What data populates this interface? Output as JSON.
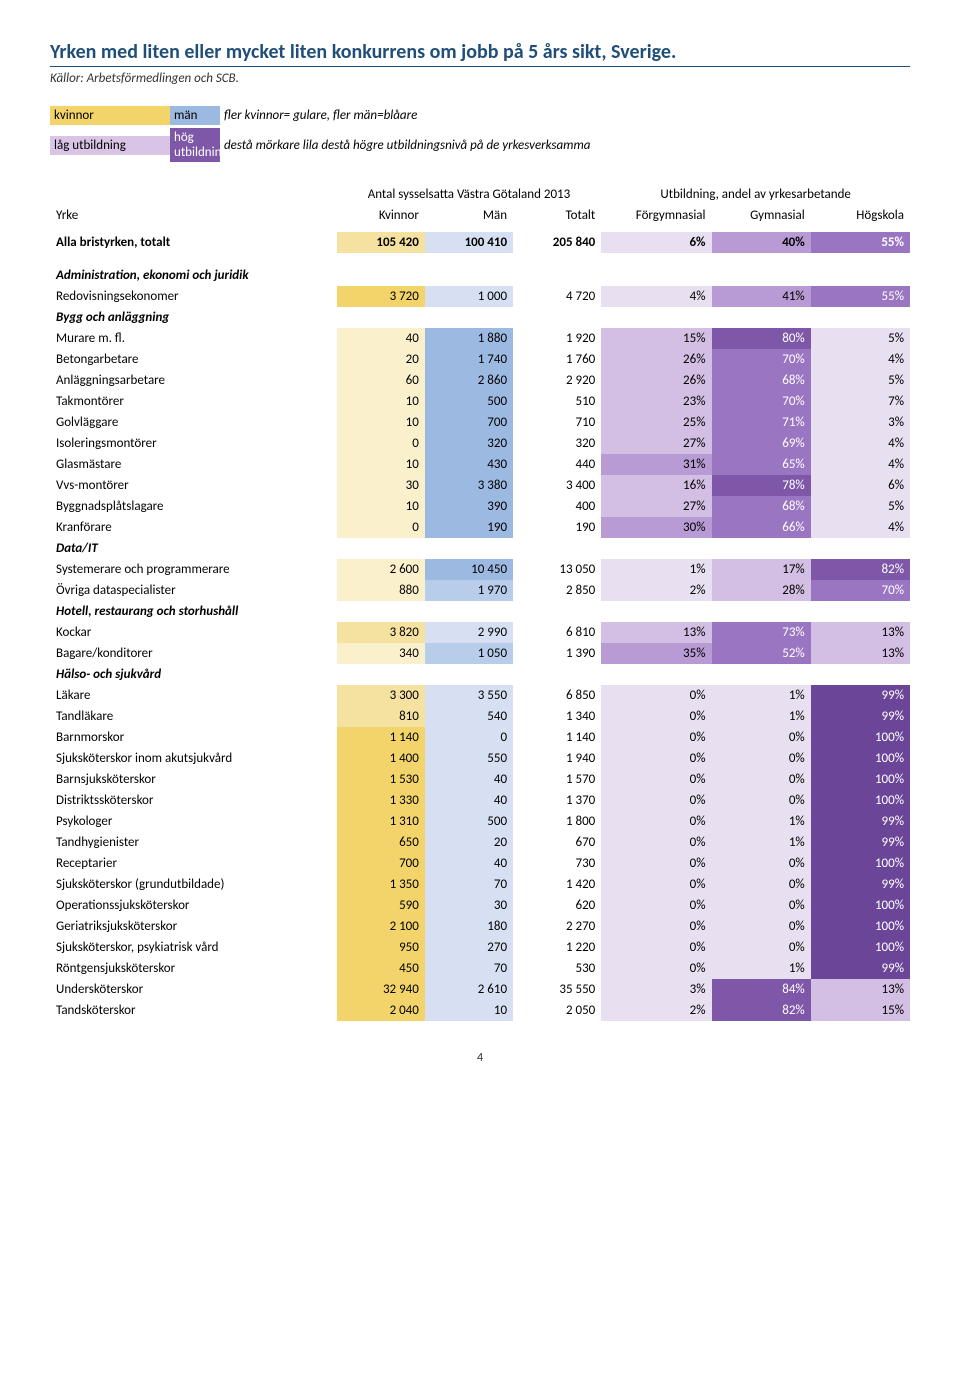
{
  "title": "Yrken med liten eller mycket liten konkurrens om jobb på 5 års sikt, Sverige.",
  "subtitle": "Källor: Arbetsförmedlingen och SCB.",
  "legend": {
    "kvinnor_label": "kvinnor",
    "man_label": "män",
    "gender_desc": "fler kvinnor= gulare, fler män=blåare",
    "low_label": "låg utbildning",
    "high_label": "hög utbildning",
    "edu_desc": "destå mörkare lila destå högre utbildningsnivå på de yrkesverksamma",
    "kvinnor_color": "#f2d46a",
    "man_color": "#9cb9e2",
    "low_color": "#d9c4e6",
    "high_color": "#7e57a8"
  },
  "headers": {
    "group1": "Antal sysselsatta Västra Götaland 2013",
    "group2": "Utbildning, andel av yrkesarbetande",
    "yrke": "Yrke",
    "kvinnor": "Kvinnor",
    "man": "Män",
    "totalt": "Totalt",
    "forgym": "Förgymnasial",
    "gym": "Gymnasial",
    "hog": "Högskola"
  },
  "colors": {
    "yellow_strong": "#f2d46a",
    "yellow_mid": "#f5e2a0",
    "yellow_light": "#faf0cc",
    "blue_strong": "#9cb9e2",
    "blue_mid": "#b8cdea",
    "blue_light": "#d6e0f2",
    "purple_vlight": "#e8dff0",
    "purple_light": "#d4bfe4",
    "purple_mid": "#b89bd4",
    "purple_strong": "#9a75c2",
    "purple_vstrong": "#7e57a8",
    "purple_darkest": "#6b4698"
  },
  "rows": [
    {
      "type": "bold",
      "label": "Alla bristyrken, totalt",
      "k": "105 420",
      "kc": "yellow_mid",
      "m": "100 410",
      "mc": "blue_light",
      "t": "205 840",
      "f": "6%",
      "fc": "purple_vlight",
      "g": "40%",
      "gc": "purple_mid",
      "h": "55%",
      "hc": "purple_strong"
    },
    {
      "type": "spacer"
    },
    {
      "type": "italic",
      "label": "Administration, ekonomi och juridik"
    },
    {
      "label": "Redovisningsekonomer",
      "k": "3 720",
      "kc": "yellow_strong",
      "m": "1 000",
      "mc": "blue_light",
      "t": "4 720",
      "f": "4%",
      "fc": "purple_vlight",
      "g": "41%",
      "gc": "purple_mid",
      "h": "55%",
      "hc": "purple_strong"
    },
    {
      "type": "italic",
      "label": "Bygg och anläggning"
    },
    {
      "label": "Murare m. fl.",
      "k": "40",
      "kc": "yellow_light",
      "m": "1 880",
      "mc": "blue_strong",
      "t": "1 920",
      "f": "15%",
      "fc": "purple_light",
      "g": "80%",
      "gc": "purple_vstrong",
      "h": "5%",
      "hc": "purple_vlight"
    },
    {
      "label": "Betongarbetare",
      "k": "20",
      "kc": "yellow_light",
      "m": "1 740",
      "mc": "blue_strong",
      "t": "1 760",
      "f": "26%",
      "fc": "purple_light",
      "g": "70%",
      "gc": "purple_strong",
      "h": "4%",
      "hc": "purple_vlight"
    },
    {
      "label": "Anläggningsarbetare",
      "k": "60",
      "kc": "yellow_light",
      "m": "2 860",
      "mc": "blue_strong",
      "t": "2 920",
      "f": "26%",
      "fc": "purple_light",
      "g": "68%",
      "gc": "purple_strong",
      "h": "5%",
      "hc": "purple_vlight"
    },
    {
      "label": "Takmontörer",
      "k": "10",
      "kc": "yellow_light",
      "m": "500",
      "mc": "blue_strong",
      "t": "510",
      "f": "23%",
      "fc": "purple_light",
      "g": "70%",
      "gc": "purple_strong",
      "h": "7%",
      "hc": "purple_vlight"
    },
    {
      "label": "Golvläggare",
      "k": "10",
      "kc": "yellow_light",
      "m": "700",
      "mc": "blue_strong",
      "t": "710",
      "f": "25%",
      "fc": "purple_light",
      "g": "71%",
      "gc": "purple_strong",
      "h": "3%",
      "hc": "purple_vlight"
    },
    {
      "label": "Isoleringsmontörer",
      "k": "0",
      "kc": "yellow_light",
      "m": "320",
      "mc": "blue_strong",
      "t": "320",
      "f": "27%",
      "fc": "purple_light",
      "g": "69%",
      "gc": "purple_strong",
      "h": "4%",
      "hc": "purple_vlight"
    },
    {
      "label": "Glasmästare",
      "k": "10",
      "kc": "yellow_light",
      "m": "430",
      "mc": "blue_strong",
      "t": "440",
      "f": "31%",
      "fc": "purple_mid",
      "g": "65%",
      "gc": "purple_strong",
      "h": "4%",
      "hc": "purple_vlight"
    },
    {
      "label": "Vvs-montörer",
      "k": "30",
      "kc": "yellow_light",
      "m": "3 380",
      "mc": "blue_strong",
      "t": "3 400",
      "f": "16%",
      "fc": "purple_light",
      "g": "78%",
      "gc": "purple_vstrong",
      "h": "6%",
      "hc": "purple_vlight"
    },
    {
      "label": "Byggnadsplåtslagare",
      "k": "10",
      "kc": "yellow_light",
      "m": "390",
      "mc": "blue_strong",
      "t": "400",
      "f": "27%",
      "fc": "purple_light",
      "g": "68%",
      "gc": "purple_strong",
      "h": "5%",
      "hc": "purple_vlight"
    },
    {
      "label": "Kranförare",
      "k": "0",
      "kc": "yellow_light",
      "m": "190",
      "mc": "blue_strong",
      "t": "190",
      "f": "30%",
      "fc": "purple_mid",
      "g": "66%",
      "gc": "purple_strong",
      "h": "4%",
      "hc": "purple_vlight"
    },
    {
      "type": "italic",
      "label": "Data/IT"
    },
    {
      "label": "Systemerare och programmerare",
      "k": "2 600",
      "kc": "yellow_light",
      "m": "10 450",
      "mc": "blue_strong",
      "t": "13 050",
      "f": "1%",
      "fc": "purple_vlight",
      "g": "17%",
      "gc": "purple_light",
      "h": "82%",
      "hc": "purple_vstrong"
    },
    {
      "label": "Övriga dataspecialister",
      "k": "880",
      "kc": "yellow_light",
      "m": "1 970",
      "mc": "blue_mid",
      "t": "2 850",
      "f": "2%",
      "fc": "purple_vlight",
      "g": "28%",
      "gc": "purple_light",
      "h": "70%",
      "hc": "purple_strong"
    },
    {
      "type": "italic",
      "label": "Hotell, restaurang och storhushåll"
    },
    {
      "label": "Kockar",
      "k": "3 820",
      "kc": "yellow_mid",
      "m": "2 990",
      "mc": "blue_light",
      "t": "6 810",
      "f": "13%",
      "fc": "purple_light",
      "g": "73%",
      "gc": "purple_strong",
      "h": "13%",
      "hc": "purple_light"
    },
    {
      "label": "Bagare/konditorer",
      "k": "340",
      "kc": "yellow_light",
      "m": "1 050",
      "mc": "blue_mid",
      "t": "1 390",
      "f": "35%",
      "fc": "purple_mid",
      "g": "52%",
      "gc": "purple_strong",
      "h": "13%",
      "hc": "purple_light"
    },
    {
      "type": "italic",
      "label": "Hälso- och sjukvård"
    },
    {
      "label": "Läkare",
      "k": "3 300",
      "kc": "yellow_mid",
      "m": "3 550",
      "mc": "blue_light",
      "t": "6 850",
      "f": "0%",
      "fc": "purple_vlight",
      "g": "1%",
      "gc": "purple_vlight",
      "h": "99%",
      "hc": "purple_darkest"
    },
    {
      "label": "Tandläkare",
      "k": "810",
      "kc": "yellow_mid",
      "m": "540",
      "mc": "blue_light",
      "t": "1 340",
      "f": "0%",
      "fc": "purple_vlight",
      "g": "1%",
      "gc": "purple_vlight",
      "h": "99%",
      "hc": "purple_darkest"
    },
    {
      "label": "Barnmorskor",
      "k": "1 140",
      "kc": "yellow_strong",
      "m": "0",
      "mc": "blue_light",
      "t": "1 140",
      "f": "0%",
      "fc": "purple_vlight",
      "g": "0%",
      "gc": "purple_vlight",
      "h": "100%",
      "hc": "purple_darkest"
    },
    {
      "label": "Sjuksköterskor inom akutsjukvård",
      "k": "1 400",
      "kc": "yellow_strong",
      "m": "550",
      "mc": "blue_light",
      "t": "1 940",
      "f": "0%",
      "fc": "purple_vlight",
      "g": "0%",
      "gc": "purple_vlight",
      "h": "100%",
      "hc": "purple_darkest"
    },
    {
      "label": "Barnsjuksköterskor",
      "k": "1 530",
      "kc": "yellow_strong",
      "m": "40",
      "mc": "blue_light",
      "t": "1 570",
      "f": "0%",
      "fc": "purple_vlight",
      "g": "0%",
      "gc": "purple_vlight",
      "h": "100%",
      "hc": "purple_darkest"
    },
    {
      "label": "Distriktssköterskor",
      "k": "1 330",
      "kc": "yellow_strong",
      "m": "40",
      "mc": "blue_light",
      "t": "1 370",
      "f": "0%",
      "fc": "purple_vlight",
      "g": "0%",
      "gc": "purple_vlight",
      "h": "100%",
      "hc": "purple_darkest"
    },
    {
      "label": "Psykologer",
      "k": "1 310",
      "kc": "yellow_strong",
      "m": "500",
      "mc": "blue_light",
      "t": "1 800",
      "f": "0%",
      "fc": "purple_vlight",
      "g": "1%",
      "gc": "purple_vlight",
      "h": "99%",
      "hc": "purple_darkest"
    },
    {
      "label": "Tandhygienister",
      "k": "650",
      "kc": "yellow_strong",
      "m": "20",
      "mc": "blue_light",
      "t": "670",
      "f": "0%",
      "fc": "purple_vlight",
      "g": "1%",
      "gc": "purple_vlight",
      "h": "99%",
      "hc": "purple_darkest"
    },
    {
      "label": "Receptarier",
      "k": "700",
      "kc": "yellow_strong",
      "m": "40",
      "mc": "blue_light",
      "t": "730",
      "f": "0%",
      "fc": "purple_vlight",
      "g": "0%",
      "gc": "purple_vlight",
      "h": "100%",
      "hc": "purple_darkest"
    },
    {
      "label": "Sjuksköterskor (grundutbildade)",
      "k": "1 350",
      "kc": "yellow_strong",
      "m": "70",
      "mc": "blue_light",
      "t": "1 420",
      "f": "0%",
      "fc": "purple_vlight",
      "g": "0%",
      "gc": "purple_vlight",
      "h": "99%",
      "hc": "purple_darkest"
    },
    {
      "label": "Operationssjuksköterskor",
      "k": "590",
      "kc": "yellow_strong",
      "m": "30",
      "mc": "blue_light",
      "t": "620",
      "f": "0%",
      "fc": "purple_vlight",
      "g": "0%",
      "gc": "purple_vlight",
      "h": "100%",
      "hc": "purple_darkest"
    },
    {
      "label": "Geriatriksjuksköterskor",
      "k": "2 100",
      "kc": "yellow_strong",
      "m": "180",
      "mc": "blue_light",
      "t": "2 270",
      "f": "0%",
      "fc": "purple_vlight",
      "g": "0%",
      "gc": "purple_vlight",
      "h": "100%",
      "hc": "purple_darkest"
    },
    {
      "label": "Sjuksköterskor, psykiatrisk vård",
      "k": "950",
      "kc": "yellow_strong",
      "m": "270",
      "mc": "blue_light",
      "t": "1 220",
      "f": "0%",
      "fc": "purple_vlight",
      "g": "0%",
      "gc": "purple_vlight",
      "h": "100%",
      "hc": "purple_darkest"
    },
    {
      "label": "Röntgensjuksköterskor",
      "k": "450",
      "kc": "yellow_strong",
      "m": "70",
      "mc": "blue_light",
      "t": "530",
      "f": "0%",
      "fc": "purple_vlight",
      "g": "1%",
      "gc": "purple_vlight",
      "h": "99%",
      "hc": "purple_darkest"
    },
    {
      "label": "Undersköterskor",
      "k": "32 940",
      "kc": "yellow_strong",
      "m": "2 610",
      "mc": "blue_light",
      "t": "35 550",
      "f": "3%",
      "fc": "purple_vlight",
      "g": "84%",
      "gc": "purple_vstrong",
      "h": "13%",
      "hc": "purple_light"
    },
    {
      "label": "Tandsköterskor",
      "k": "2 040",
      "kc": "yellow_strong",
      "m": "10",
      "mc": "blue_light",
      "t": "2 050",
      "f": "2%",
      "fc": "purple_vlight",
      "g": "82%",
      "gc": "purple_vstrong",
      "h": "15%",
      "hc": "purple_light"
    }
  ],
  "page_number": "4"
}
